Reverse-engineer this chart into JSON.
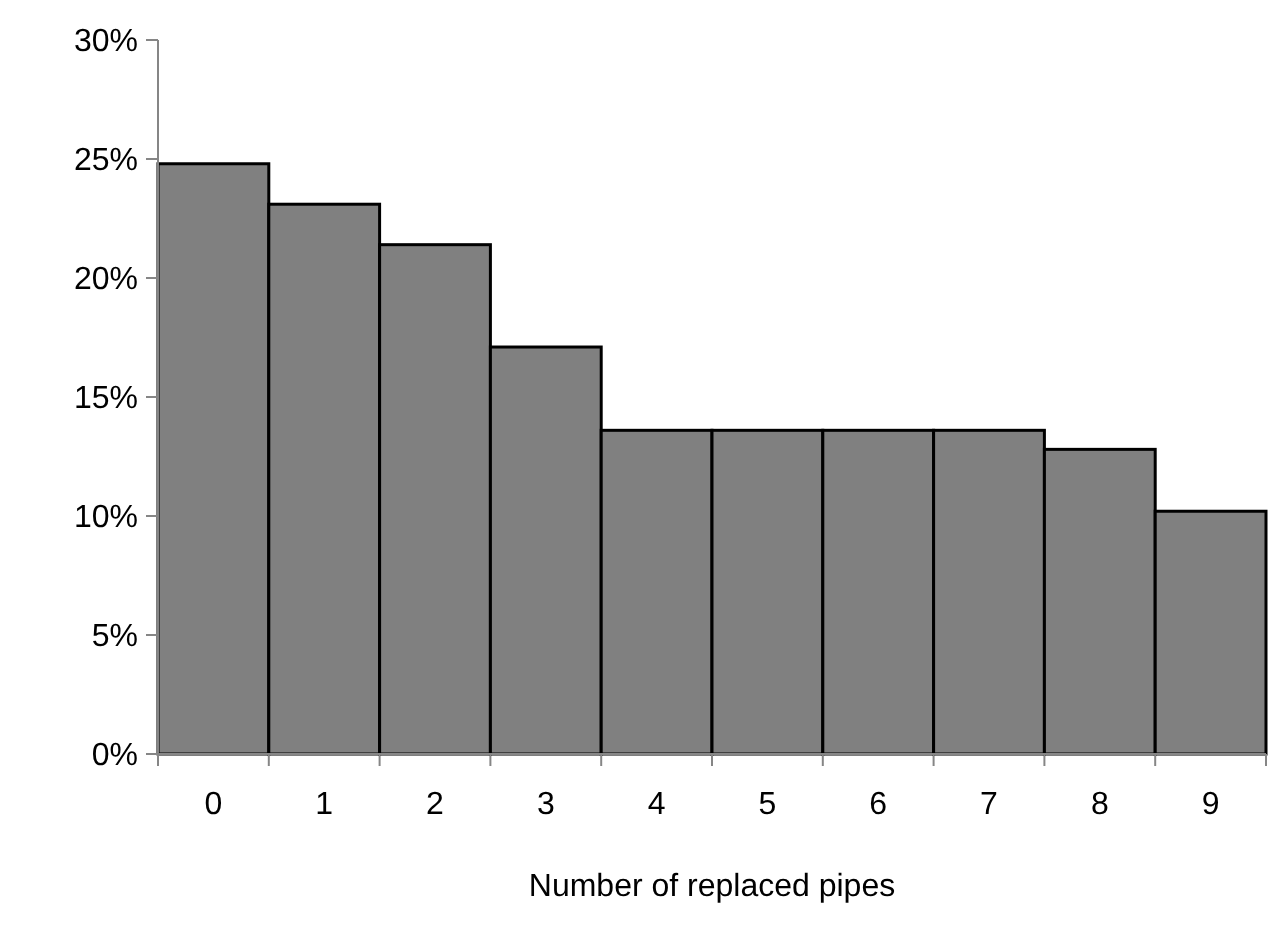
{
  "chart_data": {
    "type": "bar",
    "xlabel": "Number of replaced pipes",
    "categories": [
      "0",
      "1",
      "2",
      "3",
      "4",
      "5",
      "6",
      "7",
      "8",
      "9"
    ],
    "values": [
      24.8,
      23.1,
      21.4,
      17.1,
      13.6,
      13.6,
      13.6,
      13.6,
      12.8,
      10.2
    ],
    "color": "#808080",
    "ylim": [
      0,
      30
    ],
    "yticks": [
      {
        "value": 0,
        "label": "0%"
      },
      {
        "value": 5,
        "label": "5%"
      },
      {
        "value": 10,
        "label": "10%"
      },
      {
        "value": 15,
        "label": "15%"
      },
      {
        "value": 20,
        "label": "20%"
      },
      {
        "value": 25,
        "label": "25%"
      },
      {
        "value": 30,
        "label": "30%"
      }
    ],
    "grid": false
  }
}
